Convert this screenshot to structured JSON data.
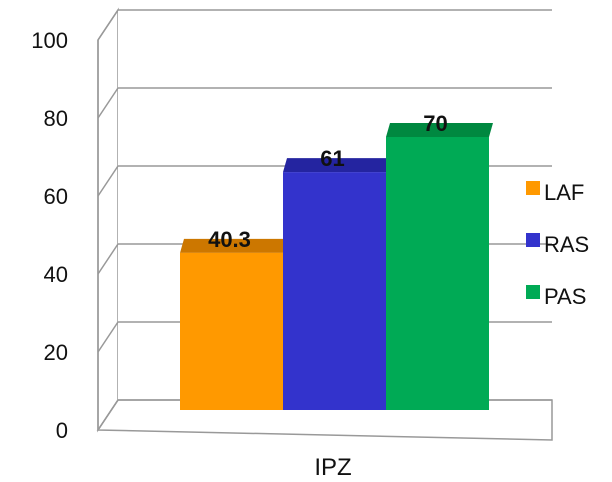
{
  "chart_data": {
    "type": "bar",
    "style": "3d-clustered",
    "categories": [
      "IPZ"
    ],
    "series": [
      {
        "name": "LAF",
        "values": [
          40.3
        ],
        "color": "#FF9900",
        "top_color": "#CC7700"
      },
      {
        "name": "RAS",
        "values": [
          61
        ],
        "color": "#3333CC",
        "top_color": "#2424A0"
      },
      {
        "name": "PAS",
        "values": [
          70
        ],
        "color": "#00AA55",
        "top_color": "#008840"
      }
    ],
    "data_labels": [
      "40.3",
      "61",
      "70"
    ],
    "ylim": [
      0,
      100
    ],
    "yticks": [
      0,
      20,
      40,
      60,
      80,
      100
    ],
    "ytick_labels": [
      "0",
      "20",
      "40",
      "60",
      "80",
      "100"
    ],
    "grid": true,
    "legend_position": "right",
    "title": "",
    "xlabel": "",
    "ylabel": ""
  }
}
